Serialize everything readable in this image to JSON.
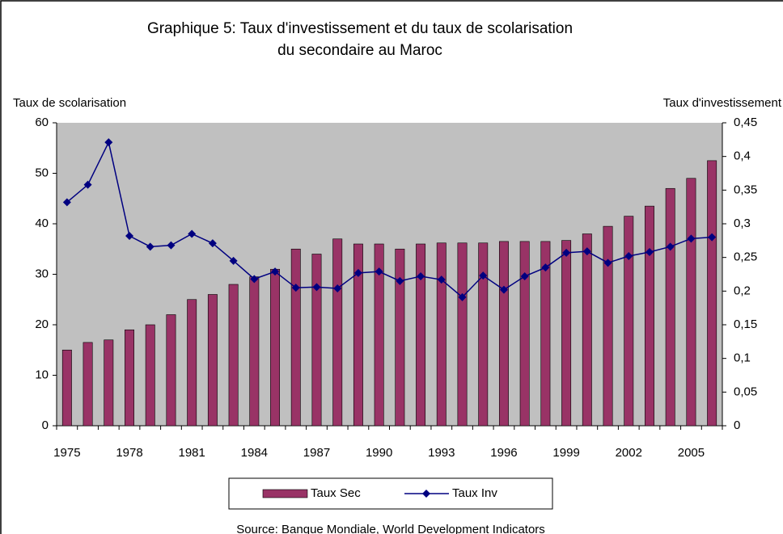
{
  "chart_data": {
    "type": "bar-line",
    "title": [
      "Graphique 5: Taux d'investissement et du taux de scolarisation",
      "du secondaire au Maroc"
    ],
    "y_label": "Taux de scolarisation",
    "y2_label": "Taux d'investissement",
    "source": "Source: Banque Mondiale, World Development Indicators",
    "categories": [
      "1975",
      null,
      null,
      "1978",
      null,
      null,
      "1981",
      null,
      null,
      "1984",
      null,
      null,
      "1987",
      null,
      null,
      "1990",
      null,
      null,
      "1993",
      null,
      null,
      "1996",
      null,
      null,
      "1999",
      null,
      null,
      "2002",
      null,
      null,
      "2005",
      null
    ],
    "series": [
      {
        "name": "Taux Sec",
        "type": "bar",
        "color": "#993366",
        "axis": "y",
        "values": [
          15,
          16.5,
          17,
          19,
          20,
          22,
          25,
          26,
          28,
          29.5,
          31,
          35,
          34,
          37,
          36,
          36,
          35,
          36,
          36.2,
          36.2,
          36.2,
          36.5,
          36.5,
          36.5,
          36.7,
          38,
          39.5,
          41.5,
          43.5,
          47,
          49,
          52.5
        ]
      },
      {
        "name": "Taux Inv",
        "type": "line",
        "color": "#000080",
        "axis": "y2",
        "values": [
          0.332,
          0.358,
          0.421,
          0.282,
          0.266,
          0.268,
          0.285,
          0.271,
          0.245,
          0.218,
          0.229,
          0.205,
          0.206,
          0.204,
          0.227,
          0.229,
          0.215,
          0.222,
          0.217,
          0.191,
          0.223,
          0.202,
          0.222,
          0.235,
          0.257,
          0.259,
          0.242,
          0.252,
          0.258,
          0.266,
          0.278,
          0.28
        ]
      }
    ],
    "ylim": [
      0,
      60
    ],
    "yticks": [
      0,
      10,
      20,
      30,
      40,
      50,
      60
    ],
    "y2lim": [
      0,
      0.45
    ],
    "y2ticks": [
      0,
      {
        "value": 0.05,
        "label": "0,05"
      },
      {
        "value": 0.1,
        "label": "0,1"
      },
      {
        "value": 0.15,
        "label": "0,15"
      },
      {
        "value": 0.2,
        "label": "0,2"
      },
      {
        "value": 0.25,
        "label": "0,25"
      },
      {
        "value": 0.3,
        "label": "0,3"
      },
      {
        "value": 0.35,
        "label": "0,35"
      },
      {
        "value": 0.4,
        "label": "0,4"
      },
      {
        "value": 0.45,
        "label": "0,45"
      }
    ],
    "plot_background": "#c0c0c0",
    "legend": "bottom"
  }
}
